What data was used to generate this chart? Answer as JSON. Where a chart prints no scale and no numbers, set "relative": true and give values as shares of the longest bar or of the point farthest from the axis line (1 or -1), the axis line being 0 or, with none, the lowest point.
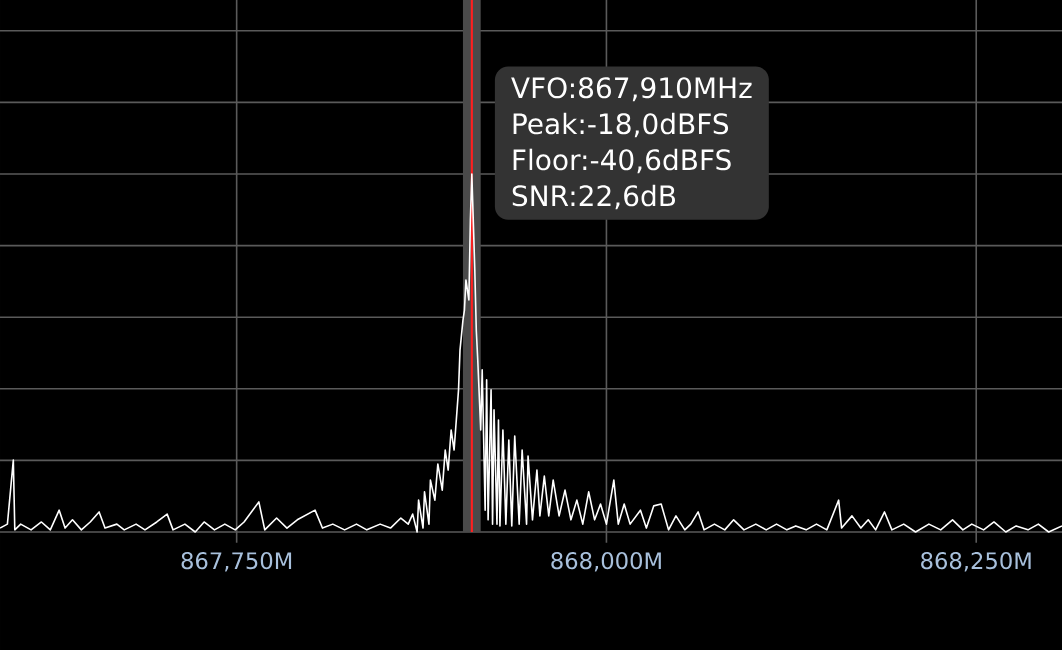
{
  "chart_data": {
    "type": "line",
    "relative": true,
    "annotations": [
      "VFO:867,910MHz",
      "Peak:-18,0dBFS",
      "Floor:-40,6dBFS",
      "SNR:22,6dB"
    ],
    "xlim": [
      867590,
      868308
    ],
    "xticks": [
      {
        "value": 867750,
        "label": "867,750M"
      },
      {
        "value": 868000,
        "label": "868,000M"
      },
      {
        "value": 868250,
        "label": "868,250M"
      }
    ],
    "grid": true,
    "marker": "none",
    "line_style": "solid",
    "ref_lines": [
      {
        "axis": "x",
        "value": 867909,
        "color": "#ff2020"
      }
    ],
    "bands": [
      {
        "axis": "x",
        "from": 867903,
        "to": 867915,
        "color": "#4a4a4a"
      }
    ],
    "series": [
      {
        "color": "#ffffff",
        "x": [
          867590,
          867595,
          867599,
          867600,
          867604,
          867611,
          867618,
          867624,
          867630,
          867634,
          867639,
          867645,
          867651,
          867657,
          867661,
          867669,
          867674,
          867682,
          867688,
          867696,
          867703,
          867707,
          867715,
          867722,
          867728,
          867735,
          867742,
          867749,
          867755,
          867765,
          867769,
          867777,
          867784,
          867791,
          867803,
          867808,
          867815,
          867823,
          867831,
          867838,
          867847,
          867854,
          867861,
          867866,
          867869,
          867872,
          867873,
          867876,
          867877,
          867880,
          867881,
          867884,
          867886,
          867889,
          867891,
          867893,
          867895,
          867897,
          867899,
          867900,
          867901,
          867903,
          867904,
          867905,
          867907,
          867908,
          867909,
          867911,
          867912,
          867913,
          867915,
          867916,
          867918,
          867919,
          867920,
          867922,
          867923,
          867924,
          867926,
          867927,
          867928,
          867930,
          867932,
          867934,
          867936,
          867938,
          867941,
          867943,
          867946,
          867947,
          867950,
          867953,
          867955,
          867958,
          867961,
          867964,
          867968,
          867972,
          867976,
          867980,
          867984,
          867988,
          867992,
          867996,
          868000,
          868005,
          868008,
          868012,
          868016,
          868023,
          868027,
          868032,
          868037,
          868042,
          868047,
          868053,
          868057,
          868062,
          868066,
          868073,
          868080,
          868086,
          868093,
          868101,
          868108,
          868115,
          868122,
          868128,
          868135,
          868142,
          868149,
          868157,
          868159,
          868166,
          868172,
          868177,
          868182,
          868188,
          868193,
          868201,
          868209,
          868218,
          868226,
          868234,
          868241,
          868247,
          868255,
          868262,
          868270,
          868277,
          868285,
          868292,
          868299,
          868308
        ],
        "values": [
          0.011,
          0.022,
          0.201,
          0.006,
          0.022,
          0.006,
          0.028,
          0.006,
          0.061,
          0.011,
          0.034,
          0.006,
          0.028,
          0.056,
          0.011,
          0.022,
          0.006,
          0.022,
          0.006,
          0.028,
          0.05,
          0.006,
          0.022,
          0,
          0.028,
          0.006,
          0.022,
          0.006,
          0.028,
          0.084,
          0.006,
          0.039,
          0.011,
          0.034,
          0.061,
          0.011,
          0.022,
          0.006,
          0.022,
          0.006,
          0.022,
          0.011,
          0.039,
          0.022,
          0.05,
          0,
          0.089,
          0.011,
          0.112,
          0.022,
          0.145,
          0.089,
          0.19,
          0.117,
          0.229,
          0.173,
          0.285,
          0.229,
          0.341,
          0.397,
          0.508,
          0.592,
          0.62,
          0.704,
          0.648,
          0.872,
          1,
          0.732,
          0.564,
          0.48,
          0.285,
          0.453,
          0.061,
          0.425,
          0.034,
          0.397,
          0.022,
          0.341,
          0.022,
          0.313,
          0.017,
          0.285,
          0.022,
          0.257,
          0.017,
          0.268,
          0.022,
          0.229,
          0.022,
          0.212,
          0.034,
          0.173,
          0.045,
          0.156,
          0.045,
          0.145,
          0.045,
          0.117,
          0.034,
          0.089,
          0.022,
          0.112,
          0.034,
          0.078,
          0.022,
          0.145,
          0.022,
          0.078,
          0.022,
          0.061,
          0.011,
          0.073,
          0.078,
          0.006,
          0.045,
          0.006,
          0.022,
          0.056,
          0.006,
          0.022,
          0.006,
          0.034,
          0.006,
          0.022,
          0.006,
          0.022,
          0.006,
          0.017,
          0.006,
          0.022,
          0.006,
          0.089,
          0.011,
          0.045,
          0.011,
          0.034,
          0.006,
          0.056,
          0.006,
          0.022,
          0,
          0.022,
          0.006,
          0.034,
          0.006,
          0.022,
          0.006,
          0.028,
          0,
          0.017,
          0.006,
          0.022,
          0,
          0.017
        ]
      }
    ]
  }
}
